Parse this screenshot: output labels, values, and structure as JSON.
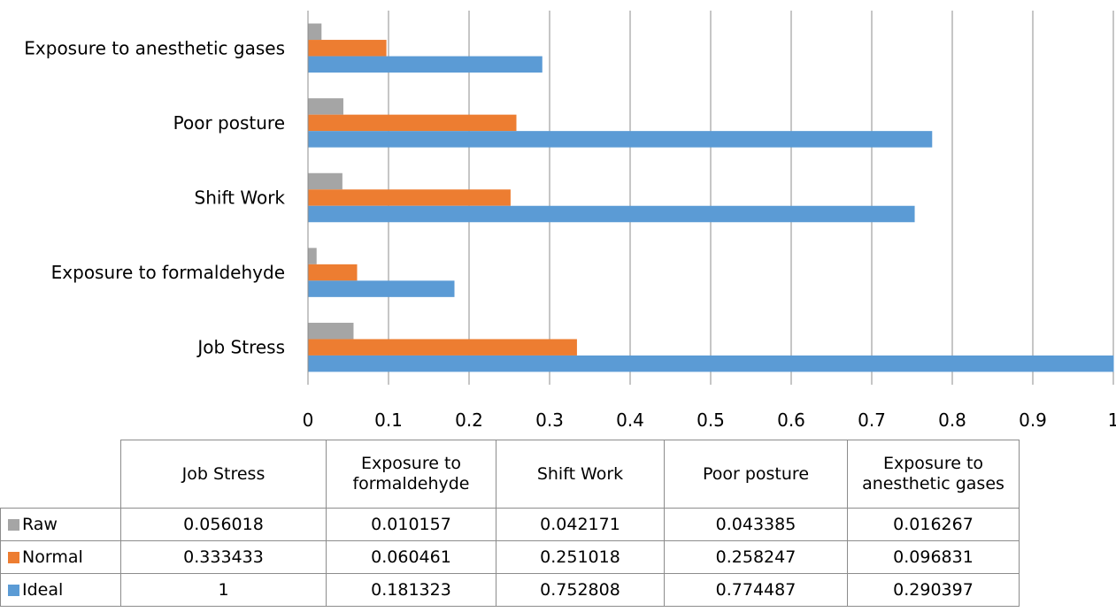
{
  "chart_data": {
    "type": "bar",
    "orientation": "horizontal",
    "categories": [
      "Job Stress",
      "Exposure to formaldehyde",
      "Shift Work",
      "Poor posture",
      "Exposure to anesthetic gases"
    ],
    "series": [
      {
        "name": "Raw",
        "color": "#a5a5a5",
        "values": [
          0.056018,
          0.010157,
          0.042171,
          0.043385,
          0.016267
        ]
      },
      {
        "name": "Normal",
        "color": "#ed7d31",
        "values": [
          0.333433,
          0.060461,
          0.251018,
          0.258247,
          0.096831
        ]
      },
      {
        "name": "Ideal",
        "color": "#5b9bd5",
        "values": [
          1,
          0.181323,
          0.752808,
          0.774487,
          0.290397
        ]
      }
    ],
    "xlim": [
      0,
      1
    ],
    "xticks": [
      "0",
      "0.1",
      "0.2",
      "0.3",
      "0.4",
      "0.5",
      "0.6",
      "0.7",
      "0.8",
      "0.9",
      "1"
    ],
    "grid": true,
    "legend": "data-table-below",
    "table": {
      "columns": [
        "Job Stress",
        "Exposure to formaldehyde",
        "Shift Work",
        "Poor posture",
        "Exposure to anesthetic gases"
      ],
      "rows": [
        {
          "label": "Raw",
          "cells": [
            "0.056018",
            "0.010157",
            "0.042171",
            "0.043385",
            "0.016267"
          ]
        },
        {
          "label": "Normal",
          "cells": [
            "0.333433",
            "0.060461",
            "0.251018",
            "0.258247",
            "0.096831"
          ]
        },
        {
          "label": "Ideal",
          "cells": [
            "1",
            "0.181323",
            "0.752808",
            "0.774487",
            "0.290397"
          ]
        }
      ]
    }
  }
}
